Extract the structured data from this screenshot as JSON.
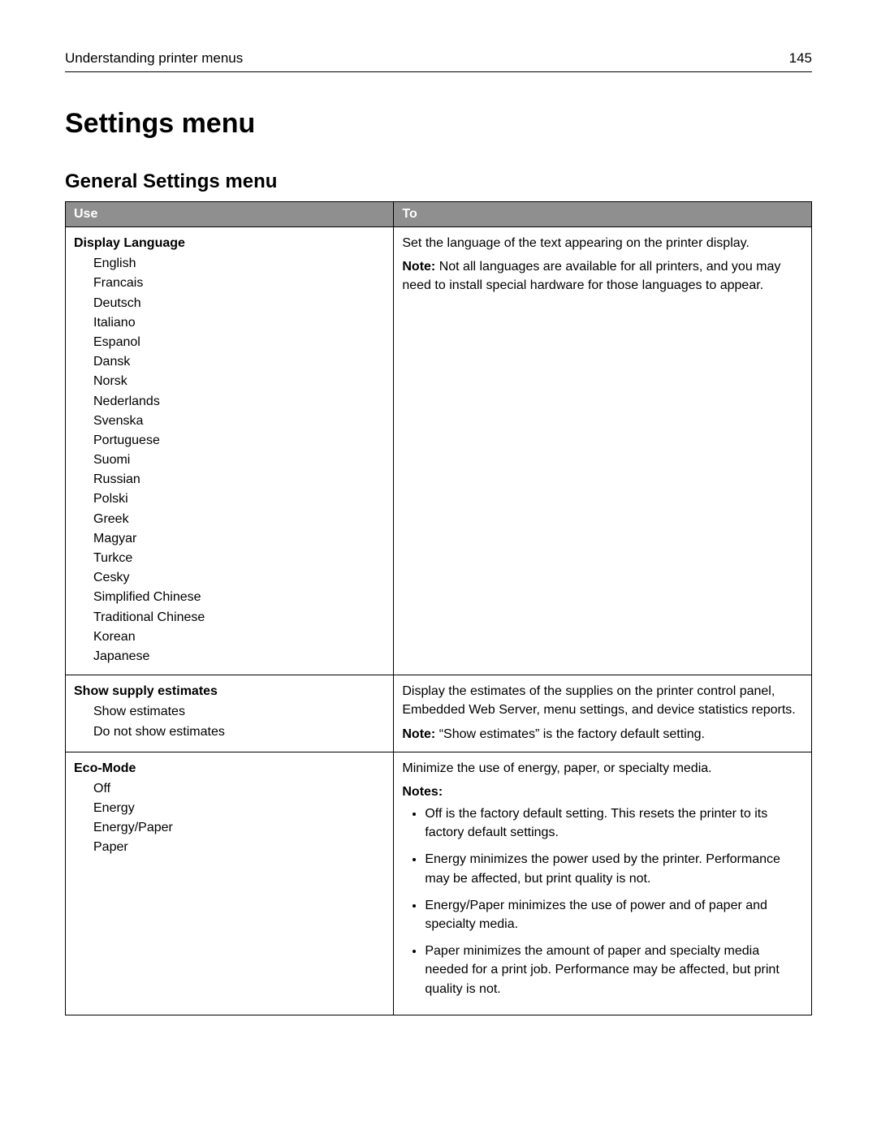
{
  "header": {
    "left": "Understanding printer menus",
    "page_number": "145"
  },
  "title": "Settings menu",
  "subsection": "General Settings menu",
  "table": {
    "header_row_bg": "#8f8f8f",
    "header_row_fg": "#ffffff",
    "columns": {
      "use": "Use",
      "to": "To"
    },
    "rows": [
      {
        "use_title": "Display Language",
        "use_options": [
          "English",
          "Francais",
          "Deutsch",
          "Italiano",
          "Espanol",
          "Dansk",
          "Norsk",
          "Nederlands",
          "Svenska",
          "Portuguese",
          "Suomi",
          "Russian",
          "Polski",
          "Greek",
          "Magyar",
          "Turkce",
          "Cesky",
          "Simplified Chinese",
          "Traditional Chinese",
          "Korean",
          "Japanese"
        ],
        "to_main": "Set the language of the text appearing on the printer display.",
        "to_note_label": "Note:",
        "to_note_text": "Not all languages are available for all printers, and you may need to install special hardware for those languages to appear."
      },
      {
        "use_title": "Show supply estimates",
        "use_options": [
          "Show estimates",
          "Do not show estimates"
        ],
        "to_main": "Display the estimates of the supplies on the printer control panel, Embedded Web Server, menu settings, and device statistics reports.",
        "to_note_label": "Note:",
        "to_note_text": "“Show estimates” is the factory default setting."
      },
      {
        "use_title": "Eco-Mode",
        "use_options": [
          "Off",
          "Energy",
          "Energy/Paper",
          "Paper"
        ],
        "to_main": "Minimize the use of energy, paper, or specialty media.",
        "to_notes_heading": "Notes:",
        "to_notes": [
          "Off is the factory default setting. This resets the printer to its factory default settings.",
          "Energy minimizes the power used by the printer. Performance may be affected, but print quality is not.",
          "Energy/Paper minimizes the use of power and of paper and specialty media.",
          "Paper minimizes the amount of paper and specialty media needed for a print job. Performance may be affected, but print quality is not."
        ]
      }
    ]
  }
}
